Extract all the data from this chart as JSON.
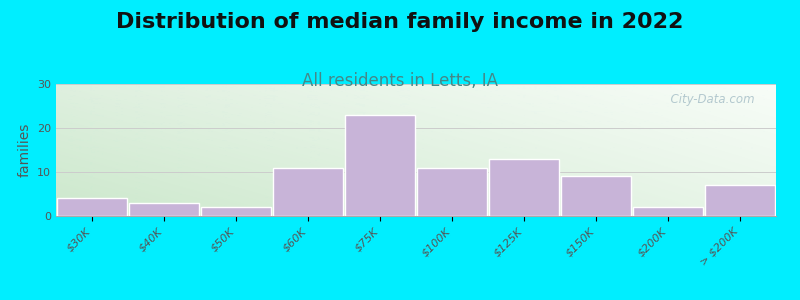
{
  "title": "Distribution of median family income in 2022",
  "subtitle": "All residents in Letts, IA",
  "ylabel": "families",
  "categories": [
    "$30K",
    "$40K",
    "$50K",
    "$60K",
    "$75K",
    "$100K",
    "$125K",
    "$150K",
    "$200K",
    "> $200K"
  ],
  "values": [
    4,
    3,
    2,
    11,
    23,
    11,
    13,
    9,
    2,
    7
  ],
  "bar_color": "#c8b4d8",
  "bar_edgecolor": "#ffffff",
  "background_outer": "#00eeff",
  "plot_bg_top_left": "#d4ecd4",
  "plot_bg_top_right": "#f0f8f0",
  "plot_bg_bottom": "#e8f4e8",
  "ylim": [
    0,
    30
  ],
  "yticks": [
    0,
    10,
    20,
    30
  ],
  "title_fontsize": 16,
  "subtitle_fontsize": 12,
  "ylabel_fontsize": 10,
  "tick_fontsize": 8,
  "watermark_text": "  City-Data.com",
  "watermark_color": "#a8c0c8"
}
